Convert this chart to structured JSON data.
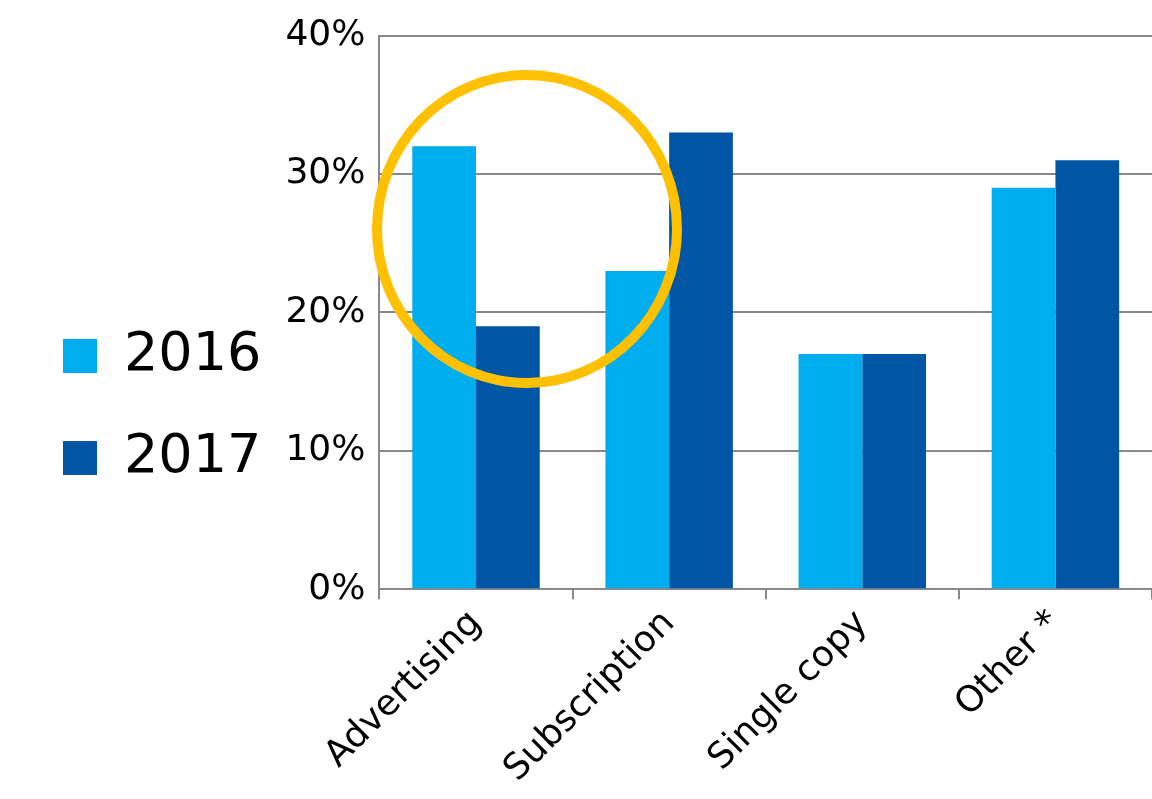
{
  "chart_data": {
    "type": "bar",
    "categories": [
      "Advertising",
      "Subscription",
      "Single copy",
      "Other *"
    ],
    "series": [
      {
        "name": "2016",
        "color": "#00adef",
        "values": [
          32,
          23,
          17,
          29
        ]
      },
      {
        "name": "2017",
        "color": "#0055a5",
        "values": [
          19,
          33,
          17,
          31
        ]
      }
    ],
    "ylim": [
      0,
      40
    ],
    "yticks": [
      {
        "value": 0,
        "label": "0%"
      },
      {
        "value": 10,
        "label": "10%"
      },
      {
        "value": 20,
        "label": "20%"
      },
      {
        "value": 30,
        "label": "30%"
      },
      {
        "value": 40,
        "label": "40%"
      }
    ],
    "grid": "y",
    "legend": "left"
  }
}
